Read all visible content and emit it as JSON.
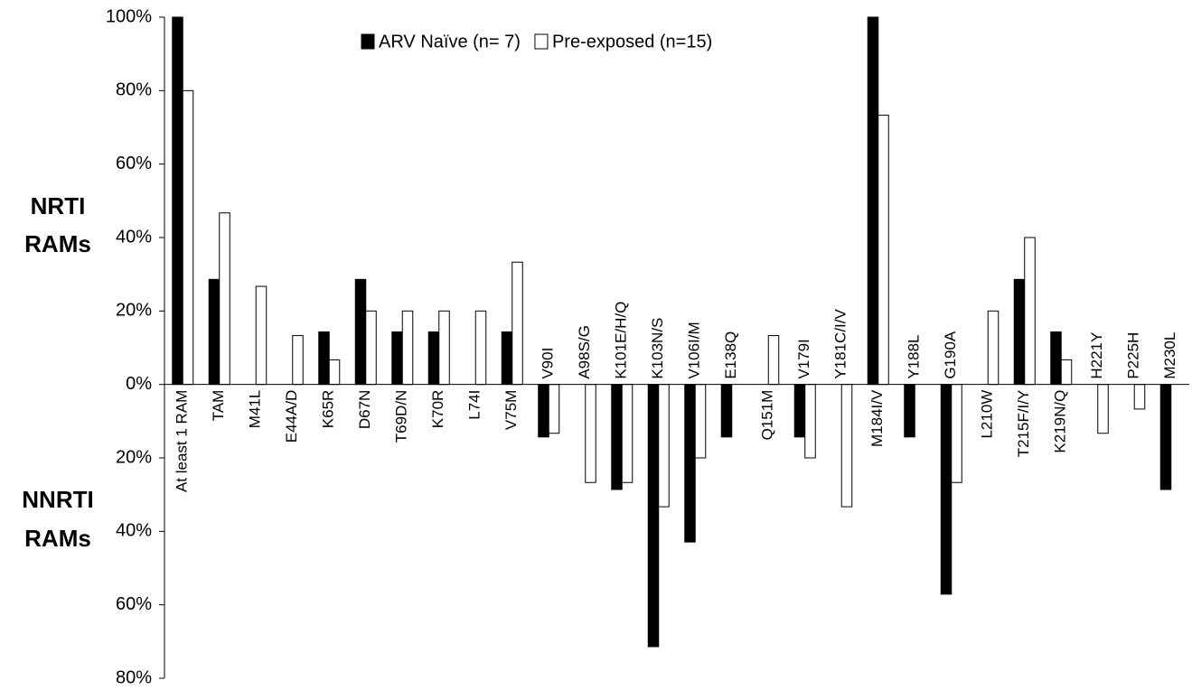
{
  "chart_data": {
    "type": "bar",
    "categories": [
      "At least 1 RAM",
      "TAM",
      "M41L",
      "E44A/D",
      "K65R",
      "D67N",
      "T69D/N",
      "K70R",
      "L74I",
      "V75M",
      "V90I",
      "A98S/G",
      "K101E/H/Q",
      "K103N/S",
      "V106I/M",
      "E138Q",
      "Q151M",
      "V179I",
      "Y181C/I/V",
      "M184I/V",
      "Y188L",
      "G190A",
      "L210W",
      "T215F/I/Y",
      "K219N/Q",
      "H221Y",
      "P225H",
      "M230L"
    ],
    "series": [
      {
        "name": "ARV Naïve (n= 7)",
        "color": "#000000",
        "values": [
          100,
          28.6,
          0,
          0,
          14.3,
          28.6,
          14.3,
          14.3,
          0,
          14.3,
          -14.3,
          0,
          -28.6,
          -71.4,
          -42.9,
          -14.3,
          0,
          -14.3,
          0,
          100,
          -14.3,
          -57.1,
          0,
          28.6,
          14.3,
          0,
          0,
          -28.6
        ]
      },
      {
        "name": "Pre-exposed (n=15)",
        "color": "#ffffff",
        "values": [
          80,
          46.7,
          26.7,
          13.3,
          6.7,
          20,
          20,
          20,
          20,
          33.3,
          -13.3,
          -26.7,
          -26.7,
          -33.3,
          -20,
          0,
          13.3,
          -20,
          -33.3,
          73.3,
          0,
          -26.7,
          20,
          40,
          6.7,
          -13.3,
          -6.7,
          0
        ]
      }
    ],
    "ylim": [
      -80,
      100
    ],
    "yticks": [
      {
        "value": 100,
        "label": "100%"
      },
      {
        "value": 80,
        "label": "80%"
      },
      {
        "value": 60,
        "label": "60%"
      },
      {
        "value": 40,
        "label": "40%"
      },
      {
        "value": 20,
        "label": "20%"
      },
      {
        "value": 0,
        "label": "0%"
      },
      {
        "value": -20,
        "label": "20%"
      },
      {
        "value": -40,
        "label": "40%"
      },
      {
        "value": -60,
        "label": "60%"
      },
      {
        "value": -80,
        "label": "80%"
      }
    ],
    "group_labels": [
      [
        "NRTI",
        "RAMs"
      ],
      [
        "NNRTI",
        "RAMs"
      ]
    ],
    "legend": "top"
  }
}
